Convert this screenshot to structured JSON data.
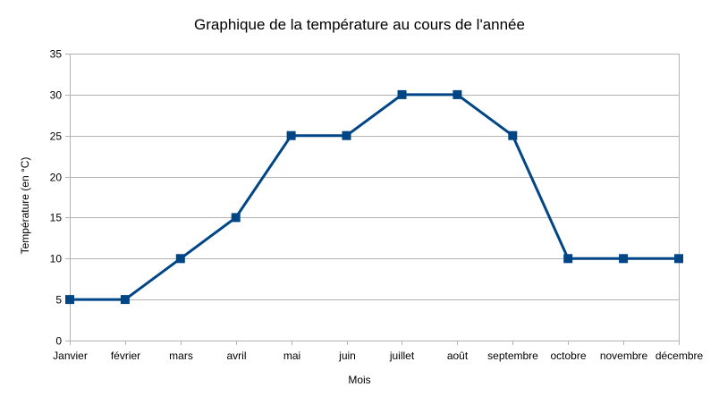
{
  "chart_data": {
    "type": "line",
    "title": "Graphique de la température au cours de l'année",
    "xlabel": "Mois",
    "ylabel": "Température (en °C)",
    "categories": [
      "Janvier",
      "février",
      "mars",
      "avril",
      "mai",
      "juin",
      "juillet",
      "août",
      "septembre",
      "octobre",
      "novembre",
      "décembre"
    ],
    "series": [
      {
        "values": [
          5,
          5,
          10,
          15,
          25,
          25,
          30,
          30,
          25,
          10,
          10,
          10
        ],
        "color": "#004586"
      }
    ],
    "ylim": [
      0,
      35
    ],
    "yticks": [
      0,
      5,
      10,
      15,
      20,
      25,
      30,
      35
    ],
    "grid": true,
    "marker": "square",
    "gridColor": "#b3b3b3",
    "axisColor": "#b3b3b3"
  }
}
